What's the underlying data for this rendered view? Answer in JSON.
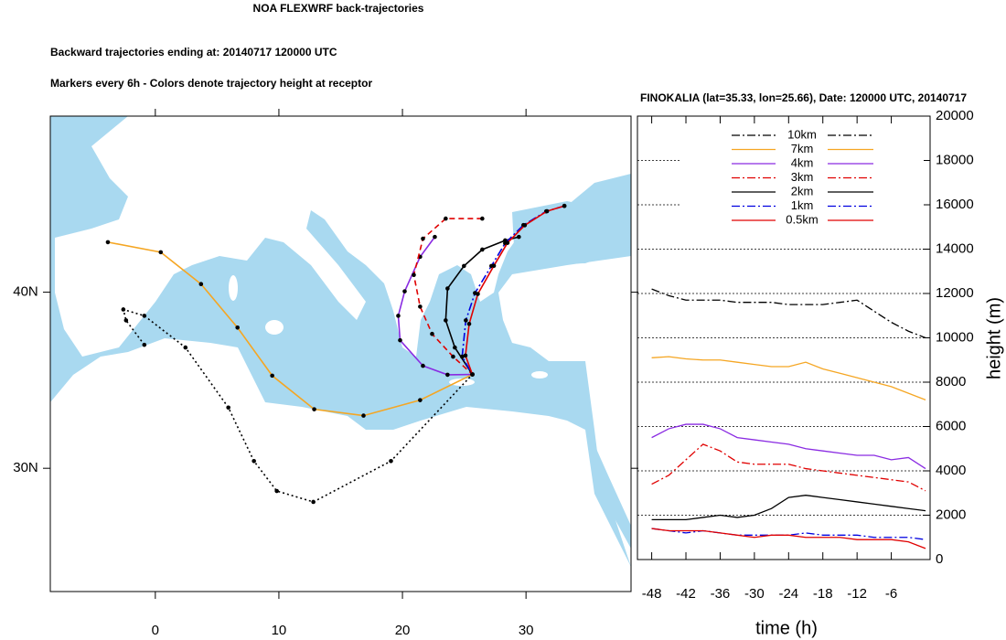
{
  "header": {
    "title": "NOA FLEXWRF back-trajectories",
    "line1": "Backward trajectories ending at: 20140717  120000 UTC",
    "line2": "Markers every 6h - Colors denote trajectory height at receptor"
  },
  "map": {
    "lonlim": [
      -8.5,
      38.5
    ],
    "latlim": [
      23,
      50
    ],
    "lonticks": [
      0,
      10,
      20,
      30
    ],
    "latticks": [
      {
        "value": 40,
        "label": "40N"
      },
      {
        "value": 30,
        "label": "30N"
      }
    ],
    "trajectories": [
      {
        "color": "#000000",
        "dash": "dotted",
        "lon": [
          -0.89,
          -2.37,
          -2.59,
          -0.89,
          2.44,
          5.91,
          7.98,
          9.83,
          12.79,
          19.07,
          25.66
        ],
        "lat": [
          37.01,
          38.4,
          39.02,
          38.66,
          36.86,
          33.45,
          30.41,
          28.71,
          28.09,
          30.41,
          35.33
        ]
      },
      {
        "color": "#f5a623",
        "dash": "solid",
        "lon": [
          -3.84,
          0.44,
          3.7,
          6.65,
          9.46,
          12.86,
          16.85,
          21.43,
          25.66
        ],
        "lat": [
          42.84,
          42.27,
          40.46,
          37.99,
          35.26,
          33.35,
          32.99,
          33.87,
          35.33
        ]
      },
      {
        "color": "#8a2be2",
        "dash": "solid",
        "lon": [
          22.62,
          21.43,
          20.18,
          19.66,
          19.81,
          21.66,
          23.65,
          25.66
        ],
        "lat": [
          43.14,
          42.01,
          40.05,
          38.66,
          37.27,
          35.82,
          35.31,
          35.33
        ]
      },
      {
        "color": "#e00000",
        "dash": "dashed",
        "lon": [
          26.46,
          23.5,
          21.66,
          20.92,
          21.43,
          22.4,
          24.1,
          25.66
        ],
        "lat": [
          44.18,
          44.18,
          43.04,
          40.98,
          39.18,
          37.63,
          36.34,
          35.33
        ]
      },
      {
        "color": "#000000",
        "dash": "solid",
        "lon": [
          29.42,
          28.31,
          26.46,
          24.98,
          23.65,
          23.5,
          24.24,
          25.66
        ],
        "lat": [
          43.14,
          42.94,
          42.42,
          41.49,
          40.21,
          38.4,
          36.86,
          35.33
        ]
      },
      {
        "color": "#0000e0",
        "dash": "dashdot",
        "lon": [
          33.11,
          31.63,
          29.79,
          28.31,
          27.2,
          25.87,
          25.13,
          24.83,
          25.66
        ],
        "lat": [
          44.9,
          44.59,
          43.81,
          42.78,
          41.49,
          39.95,
          38.4,
          36.34,
          35.33
        ]
      },
      {
        "color": "#e00000",
        "dash": "solid",
        "lon": [
          33.1,
          31.7,
          29.9,
          28.5,
          27.4,
          26.1,
          25.4,
          25.1,
          25.66
        ],
        "lat": [
          44.9,
          44.6,
          43.8,
          42.8,
          41.5,
          39.9,
          38.2,
          36.4,
          35.33
        ]
      }
    ]
  },
  "chart_data": {
    "type": "line",
    "title": "FINOKALIA (lat=35.33,  lon=25.66), Date: 120000 UTC, 20140717",
    "x_label": "time (h)",
    "y_label": "height (m)",
    "xlim": [
      -50.5,
      0.8
    ],
    "ylim": [
      0,
      20000
    ],
    "xticks": [
      -48,
      -42,
      -36,
      -30,
      -24,
      -18,
      -12,
      -6
    ],
    "yticks": [
      0,
      2000,
      4000,
      6000,
      8000,
      10000,
      12000,
      14000,
      16000,
      18000,
      20000
    ],
    "grid": true,
    "legend": "top",
    "x": [
      -48,
      -45,
      -42,
      -39,
      -36,
      -33,
      -30,
      -27,
      -24,
      -21,
      -18,
      -15,
      -12,
      -9,
      -6,
      -3,
      0
    ],
    "series": [
      {
        "name": "10km",
        "color": "#000000",
        "dash": "dashdot",
        "values": [
          12200,
          11900,
          11700,
          11700,
          11700,
          11600,
          11600,
          11600,
          11500,
          11500,
          11500,
          11600,
          11700,
          11200,
          10700,
          10300,
          10000
        ]
      },
      {
        "name": "7km",
        "color": "#f5a623",
        "dash": "solid",
        "values": [
          9100,
          9150,
          9050,
          9000,
          9000,
          8900,
          8800,
          8700,
          8700,
          8900,
          8600,
          8400,
          8200,
          8000,
          7800,
          7500,
          7200
        ]
      },
      {
        "name": "4km",
        "color": "#8a2be2",
        "dash": "solid",
        "values": [
          5500,
          5900,
          6100,
          6100,
          5900,
          5500,
          5400,
          5300,
          5200,
          5000,
          4900,
          4800,
          4700,
          4700,
          4500,
          4600,
          4100
        ]
      },
      {
        "name": "3km",
        "color": "#e00000",
        "dash": "dashdot",
        "values": [
          3400,
          3800,
          4500,
          5200,
          4900,
          4400,
          4300,
          4300,
          4300,
          4100,
          4000,
          3900,
          3800,
          3700,
          3600,
          3500,
          3100
        ]
      },
      {
        "name": "2km",
        "color": "#000000",
        "dash": "solid",
        "values": [
          1800,
          1800,
          1800,
          1900,
          2000,
          1900,
          2000,
          2300,
          2800,
          2900,
          2800,
          2700,
          2600,
          2500,
          2400,
          2300,
          2200
        ]
      },
      {
        "name": "1km",
        "color": "#0000e0",
        "dash": "dashdot",
        "values": [
          1400,
          1300,
          1200,
          1300,
          1200,
          1100,
          1100,
          1100,
          1100,
          1200,
          1100,
          1100,
          1100,
          1000,
          1000,
          1000,
          900
        ]
      },
      {
        "name": "0.5km",
        "color": "#e00000",
        "dash": "solid",
        "values": [
          1400,
          1300,
          1300,
          1300,
          1200,
          1100,
          1000,
          1100,
          1100,
          1000,
          1000,
          1000,
          900,
          900,
          900,
          800,
          500
        ]
      }
    ]
  }
}
